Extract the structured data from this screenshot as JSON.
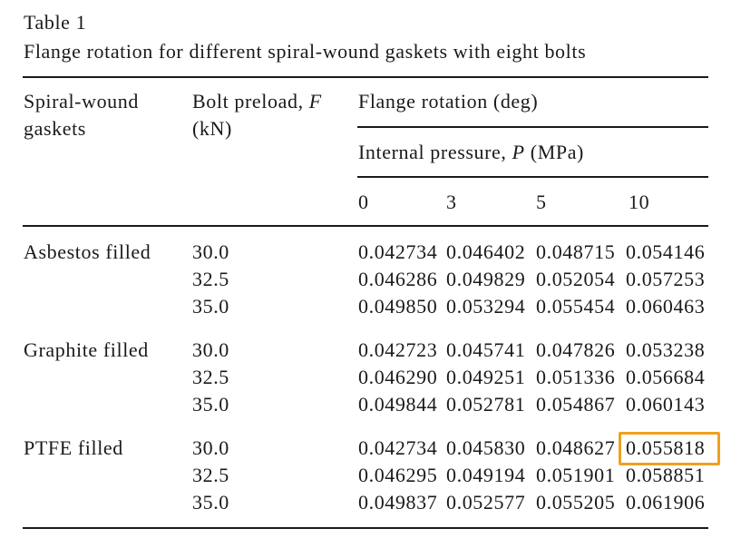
{
  "table": {
    "label": "Table 1",
    "caption": "Flange rotation for different spiral-wound gaskets with eight bolts",
    "headers": {
      "gasket_line1": "Spiral-wound",
      "gasket_line2": "gaskets",
      "preload_prefix": "Bolt preload, ",
      "preload_symbol": "F",
      "preload_unit": "(kN)",
      "rotation": "Flange rotation (deg)",
      "pressure_prefix": "Internal pressure, ",
      "pressure_symbol": "P",
      "pressure_unit": " (MPa)",
      "pressure_values": [
        "0",
        "3",
        "5",
        "10"
      ]
    },
    "groups": [
      {
        "name": "Asbestos filled",
        "rows": [
          {
            "preload": "30.0",
            "values": [
              "0.042734",
              "0.046402",
              "0.048715",
              "0.054146"
            ]
          },
          {
            "preload": "32.5",
            "values": [
              "0.046286",
              "0.049829",
              "0.052054",
              "0.057253"
            ]
          },
          {
            "preload": "35.0",
            "values": [
              "0.049850",
              "0.053294",
              "0.055454",
              "0.060463"
            ]
          }
        ]
      },
      {
        "name": "Graphite filled",
        "rows": [
          {
            "preload": "30.0",
            "values": [
              "0.042723",
              "0.045741",
              "0.047826",
              "0.053238"
            ]
          },
          {
            "preload": "32.5",
            "values": [
              "0.046290",
              "0.049251",
              "0.051336",
              "0.056684"
            ]
          },
          {
            "preload": "35.0",
            "values": [
              "0.049844",
              "0.052781",
              "0.054867",
              "0.060143"
            ]
          }
        ]
      },
      {
        "name": "PTFE filled",
        "rows": [
          {
            "preload": "30.0",
            "values": [
              "0.042734",
              "0.045830",
              "0.048627",
              "0.055818"
            ]
          },
          {
            "preload": "32.5",
            "values": [
              "0.046295",
              "0.049194",
              "0.051901",
              "0.058851"
            ]
          },
          {
            "preload": "35.0",
            "values": [
              "0.049837",
              "0.052577",
              "0.055205",
              "0.061906"
            ]
          }
        ]
      }
    ],
    "highlight_color": "#f0a020"
  }
}
